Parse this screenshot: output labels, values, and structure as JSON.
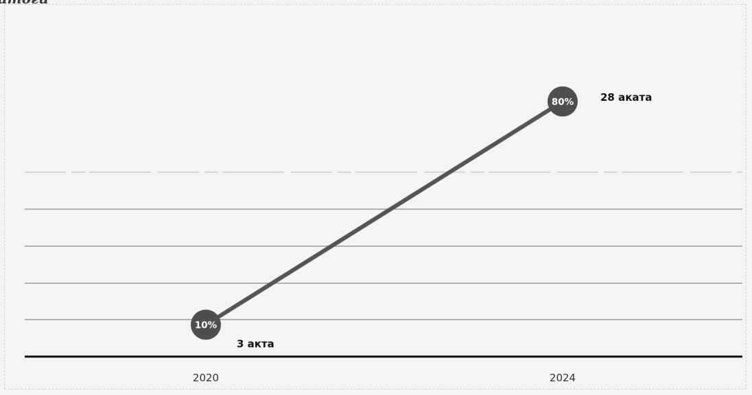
{
  "heading_fragment": "итоги",
  "colors": {
    "line": "#555555",
    "marker": "#4e4e4e",
    "axis": "#111111"
  },
  "chart_data": {
    "type": "line",
    "categories": [
      "2020",
      "2024"
    ],
    "series": [
      {
        "values": [
          10,
          80
        ],
        "value_labels": [
          "10%",
          "80%"
        ],
        "annotations": [
          "3 акта",
          "28 аката"
        ]
      }
    ],
    "ylim": [
      0,
      100
    ],
    "grid": true,
    "legend": "none"
  }
}
